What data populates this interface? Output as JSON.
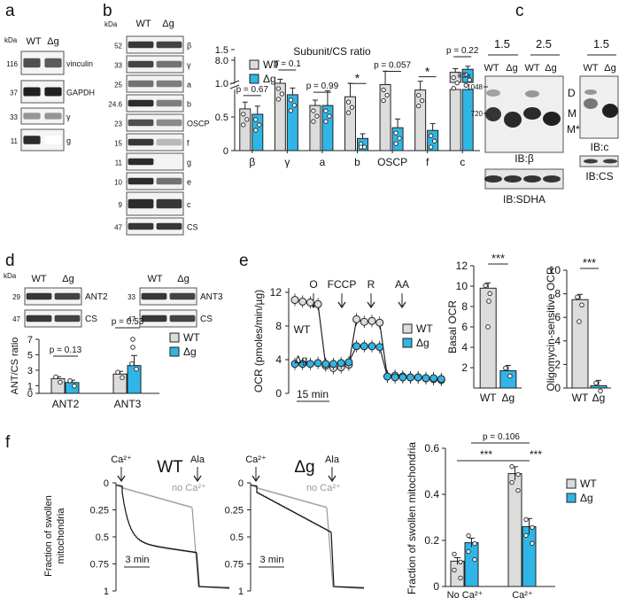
{
  "colors": {
    "wt": "#dcdcdc",
    "dg": "#2fb6e6",
    "edge": "#222222",
    "noca": "#999999"
  },
  "panels": {
    "a": {
      "letter": "a",
      "kda": "kDa",
      "lanes": [
        "WT",
        "Δg"
      ],
      "blots": [
        {
          "mw": "116",
          "label": "vinculin"
        },
        {
          "mw": "37",
          "label": "GAPDH"
        },
        {
          "mw": "33",
          "label": "γ"
        },
        {
          "mw": "11",
          "label": "g"
        }
      ]
    },
    "b": {
      "letter": "b",
      "kda": "kDa",
      "lanes": [
        "WT",
        "Δg"
      ],
      "blots": [
        {
          "mw": "52",
          "label": "β"
        },
        {
          "mw": "33",
          "label": "γ"
        },
        {
          "mw": "25",
          "label": "a"
        },
        {
          "mw": "24.6",
          "label": "b"
        },
        {
          "mw": "23",
          "label": "OSCP"
        },
        {
          "mw": "15",
          "label": "f"
        },
        {
          "mw": "11",
          "label": "g"
        },
        {
          "mw": "10",
          "label": "e"
        },
        {
          "mw": "9",
          "label": "c"
        },
        {
          "mw": "47",
          "label": "CS"
        }
      ]
    },
    "c": {
      "letter": "c",
      "kda": "kDa",
      "groups": [
        "1.5",
        "2.5",
        "1.5"
      ],
      "lanes": [
        "WT",
        "Δg"
      ],
      "mw": [
        "1048",
        "720"
      ],
      "bands": [
        "D",
        "M",
        "M*"
      ],
      "ib": [
        "IB:β",
        "IB:SDHA",
        "IB:c",
        "IB:CS"
      ]
    },
    "d": {
      "letter": "d",
      "kda": "kDa",
      "lanes": [
        "WT",
        "Δg"
      ],
      "blots": [
        {
          "mw": "29",
          "label": "ANT2"
        },
        {
          "mw": "47",
          "label": "CS"
        },
        {
          "mw": "33",
          "label": "ANT3"
        },
        {
          "mw": "47",
          "label": "CS"
        }
      ]
    },
    "e": {
      "letter": "e"
    },
    "f": {
      "letter": "f"
    }
  },
  "chart_data": [
    {
      "id": "b",
      "type": "bar",
      "title": "Subunit/CS ratio",
      "categories": [
        "β",
        "γ",
        "a",
        "b",
        "OSCP",
        "f",
        "c"
      ],
      "series": [
        {
          "name": "WT",
          "values": [
            0.62,
            1.0,
            0.67,
            0.8,
            0.98,
            0.9,
            7.6
          ],
          "err": [
            0.1,
            0.06,
            0.08,
            0.2,
            0.2,
            0.13,
            0.12
          ]
        },
        {
          "name": "Δg",
          "values": [
            0.54,
            0.83,
            0.67,
            0.18,
            0.34,
            0.3,
            7.7
          ],
          "err": [
            0.12,
            0.1,
            0.22,
            0.07,
            0.13,
            0.1,
            0.1
          ]
        }
      ],
      "ticks": [
        "0",
        "0.5",
        "1.0",
        "1.5",
        "8.0"
      ],
      "pvalues": [
        "p = 0.67",
        "p = 0.1",
        "p = 0.99",
        "*",
        "p = 0.057",
        "*",
        "p = 0.22"
      ],
      "legend": [
        "WT",
        "Δg"
      ],
      "legend_position": "top-left",
      "axis_break": true
    },
    {
      "id": "d",
      "type": "bar",
      "ylabel": "ANT/CS ratio",
      "categories": [
        "ANT2",
        "ANT3"
      ],
      "series": [
        {
          "name": "WT",
          "values": [
            1.9,
            2.5
          ],
          "err": [
            0.25,
            0.35
          ]
        },
        {
          "name": "Δg",
          "values": [
            1.4,
            3.6
          ],
          "err": [
            0.3,
            1.3
          ]
        }
      ],
      "ylim": [
        0,
        7
      ],
      "ticks": [
        "0",
        "1",
        "3",
        "5",
        "7"
      ],
      "pvalues": [
        "p = 0.13",
        "p = 0.53"
      ],
      "legend": [
        "WT",
        "Δg"
      ],
      "legend_position": "top-right"
    },
    {
      "id": "e-trace",
      "type": "line",
      "ylabel": "OCR (pmoles/min/µg)",
      "ylim": [
        0,
        12
      ],
      "ticks": [
        "0",
        "4",
        "8",
        "12"
      ],
      "injections": [
        "O",
        "FCCP",
        "R",
        "AA"
      ],
      "scalebar": "15 min",
      "series_labels": [
        "WT",
        "Δg"
      ],
      "legend": [
        "WT",
        "Δg"
      ],
      "series": [
        {
          "name": "WT",
          "values": [
            11.1,
            10.9,
            10.8,
            10.6,
            3.3,
            3.0,
            3.1,
            3.4,
            8.8,
            8.5,
            8.6,
            8.4,
            2.0,
            2.1,
            2.0,
            1.9,
            1.9,
            1.8,
            1.7,
            1.6
          ]
        },
        {
          "name": "Δg",
          "values": [
            3.5,
            3.5,
            3.5,
            3.6,
            3.5,
            3.5,
            3.6,
            3.7,
            5.6,
            5.6,
            5.6,
            5.5,
            2.0,
            1.9,
            1.9,
            1.9,
            1.9,
            1.8,
            1.8,
            1.7
          ]
        }
      ]
    },
    {
      "id": "e-basal",
      "type": "bar",
      "ylabel": "Basal OCR",
      "categories": [
        "WT",
        "Δg"
      ],
      "values": [
        9.8,
        1.7
      ],
      "ylim": [
        0,
        12
      ],
      "ticks": [
        "2",
        "4",
        "6",
        "8",
        "10",
        "12"
      ],
      "significance": "***"
    },
    {
      "id": "e-oligo",
      "type": "bar",
      "ylabel": "Oligomycin-sensitive OCR",
      "categories": [
        "WT",
        "Δg"
      ],
      "values": [
        7.5,
        0.2
      ],
      "ylim": [
        0,
        10
      ],
      "ticks": [
        "0",
        "2",
        "4",
        "6",
        "8",
        "10"
      ],
      "significance": "***"
    },
    {
      "id": "f-wt",
      "type": "line",
      "title": "WT",
      "ylabel": "Fraction of swollen mitochondria",
      "ticks": [
        "0",
        "0.25",
        "0.5",
        "0.75",
        "1"
      ],
      "markers": [
        "Ca²⁺",
        "Ala"
      ],
      "trace_label": "no Ca²⁺",
      "scalebar": "3 min"
    },
    {
      "id": "f-dg",
      "type": "line",
      "title": "Δg",
      "ticks": [
        "0",
        "0.25",
        "0.5",
        "0.75",
        "1"
      ],
      "markers": [
        "Ca²⁺",
        "Ala"
      ],
      "trace_label": "no Ca²⁺",
      "scalebar": "3 min"
    },
    {
      "id": "f-bar",
      "type": "bar",
      "ylabel": "Fraction of swollen mitochondria",
      "categories": [
        "No Ca²⁺",
        "Ca²⁺"
      ],
      "series": [
        {
          "name": "WT",
          "values": [
            0.11,
            0.49
          ],
          "err": [
            0.015,
            0.03
          ]
        },
        {
          "name": "Δg",
          "values": [
            0.19,
            0.26
          ],
          "err": [
            0.02,
            0.035
          ]
        }
      ],
      "ylim": [
        0,
        0.6
      ],
      "ticks": [
        "0",
        "0.2",
        "0.4",
        "0.6"
      ],
      "comparisons": [
        "***",
        "***",
        "p = 0.106"
      ],
      "legend": [
        "WT",
        "Δg"
      ],
      "legend_position": "top-right"
    }
  ]
}
